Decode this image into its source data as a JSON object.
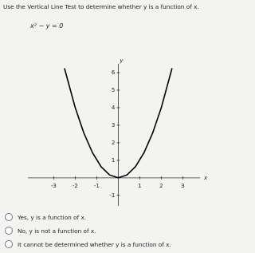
{
  "question": "Use the Vertical Line Test to determine whether y is a function of x.",
  "equation": "x² − y = 0",
  "graph": {
    "x_label": "x",
    "y_label": "y",
    "xlim": [
      -4.2,
      3.8
    ],
    "ylim": [
      -1.6,
      6.5
    ],
    "xticks": [
      -3,
      -2,
      -1,
      1,
      2,
      3
    ],
    "yticks": [
      -1,
      1,
      2,
      3,
      4,
      5,
      6
    ],
    "color": "#000000",
    "curve": {
      "x": [
        -2.5,
        -2.0,
        -1.6,
        -1.2,
        -0.8,
        -0.4,
        0,
        0.4,
        0.8,
        1.2,
        1.6,
        2.0,
        2.5
      ],
      "y": [
        6.25,
        4,
        2.56,
        1.44,
        0.64,
        0.16,
        0,
        0.16,
        0.64,
        1.44,
        2.56,
        4,
        6.25
      ]
    }
  },
  "options": [
    "Yes, y is a function of x.",
    "No, y is not a function of x.",
    "It cannot be determined whether y is a function of x."
  ]
}
